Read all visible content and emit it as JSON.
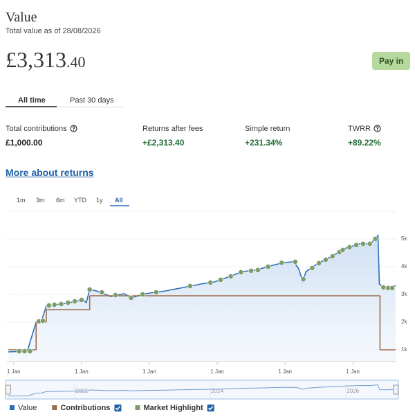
{
  "header": {
    "title": "Value",
    "subtitle": "Total value as of 28/08/2026",
    "amount_main": "£3,313",
    "amount_pence": ".40",
    "button": "Pay in"
  },
  "tabs": [
    "All time",
    "Past 30 days"
  ],
  "stats": [
    {
      "label": "Total contributions",
      "value": "£1,000.00"
    },
    {
      "label": "Returns after fees",
      "value": "+£2,313.40"
    },
    {
      "label": "Simple return",
      "value": "+231.34%"
    },
    {
      "label": "TWRR",
      "value": "+89.22%"
    }
  ],
  "link": "More about returns",
  "ranges": [
    "1m",
    "3m",
    "6m",
    "YTD",
    "1y",
    "All"
  ],
  "chart_data": {
    "type": "line",
    "xlim": [
      2020.92,
      2026.63
    ],
    "xticks": [
      {
        "value": 2021,
        "label": "1 Jan"
      },
      {
        "value": 2022,
        "label": "1 Jan"
      },
      {
        "value": 2023,
        "label": "1 Jan"
      },
      {
        "value": 2024,
        "label": "1 Jan"
      },
      {
        "value": 2025,
        "label": "1 Jan"
      },
      {
        "value": 2026,
        "label": "1 Jan"
      }
    ],
    "ylim": [
      600,
      6000
    ],
    "yticks": [
      {
        "value": 1000,
        "label": "1k"
      },
      {
        "value": 2000,
        "label": "2k"
      },
      {
        "value": 3000,
        "label": "3k"
      },
      {
        "value": 4000,
        "label": "4k"
      },
      {
        "value": 5000,
        "label": "5k"
      }
    ],
    "grid": true,
    "legend": "bottom-left",
    "navigator_xticks": [
      2022,
      2024,
      2026
    ],
    "series": [
      {
        "name": "Value",
        "type": "area",
        "color": "#2a6ebb",
        "x": [
          2020.92,
          2021.2,
          2021.33,
          2021.41,
          2021.48,
          2021.61,
          2021.82,
          2022.02,
          2022.07,
          2022.12,
          2022.22,
          2022.43,
          2022.63,
          2022.73,
          2022.94,
          2023.24,
          2023.45,
          2023.76,
          2023.96,
          2024.16,
          2024.37,
          2024.57,
          2024.78,
          2024.98,
          2025.13,
          2025.2,
          2025.26,
          2025.31,
          2025.49,
          2025.69,
          2025.9,
          2026.1,
          2026.26,
          2026.37,
          2026.39,
          2026.46,
          2026.63
        ],
        "values": [
          925,
          950,
          2000,
          2050,
          2575,
          2625,
          2700,
          2800,
          2700,
          3175,
          3125,
          2925,
          3025,
          2875,
          3025,
          3125,
          3225,
          3375,
          3450,
          3625,
          3825,
          3875,
          4025,
          4150,
          4175,
          3925,
          3475,
          3825,
          4125,
          4375,
          4675,
          4825,
          4825,
          5125,
          3375,
          3225,
          3313
        ]
      },
      {
        "name": "Contributions",
        "type": "step",
        "color": "#9c6b4a",
        "x": [
          2020.92,
          2021.33,
          2021.48,
          2022.12,
          2026.4,
          2026.63
        ],
        "values": [
          1000,
          2000,
          2450,
          2950,
          1000,
          1000
        ]
      },
      {
        "name": "Market Highlight",
        "type": "scatter",
        "color": "#7d9b6b",
        "x": [
          2021.08,
          2021.16,
          2021.24,
          2021.37,
          2021.43,
          2021.52,
          2021.6,
          2021.7,
          2021.8,
          2021.9,
          2022.0,
          2022.12,
          2022.3,
          2022.5,
          2022.73,
          2022.9,
          2023.1,
          2023.6,
          2023.9,
          2024.05,
          2024.2,
          2024.35,
          2024.5,
          2024.6,
          2024.75,
          2024.95,
          2025.15,
          2025.27,
          2025.4,
          2025.5,
          2025.6,
          2025.7,
          2025.8,
          2025.85,
          2025.95,
          2026.05,
          2026.15,
          2026.25,
          2026.33,
          2026.45,
          2026.52,
          2026.58
        ],
        "values": [
          950,
          950,
          950,
          2025,
          2050,
          2600,
          2625,
          2650,
          2700,
          2750,
          2800,
          3175,
          3075,
          2975,
          2875,
          3000,
          3075,
          3300,
          3425,
          3525,
          3650,
          3800,
          3850,
          3875,
          4000,
          4140,
          4175,
          3550,
          3950,
          4125,
          4250,
          4375,
          4525,
          4600,
          4700,
          4780,
          4825,
          4825,
          5000,
          3250,
          3230,
          3230
        ]
      }
    ]
  }
}
